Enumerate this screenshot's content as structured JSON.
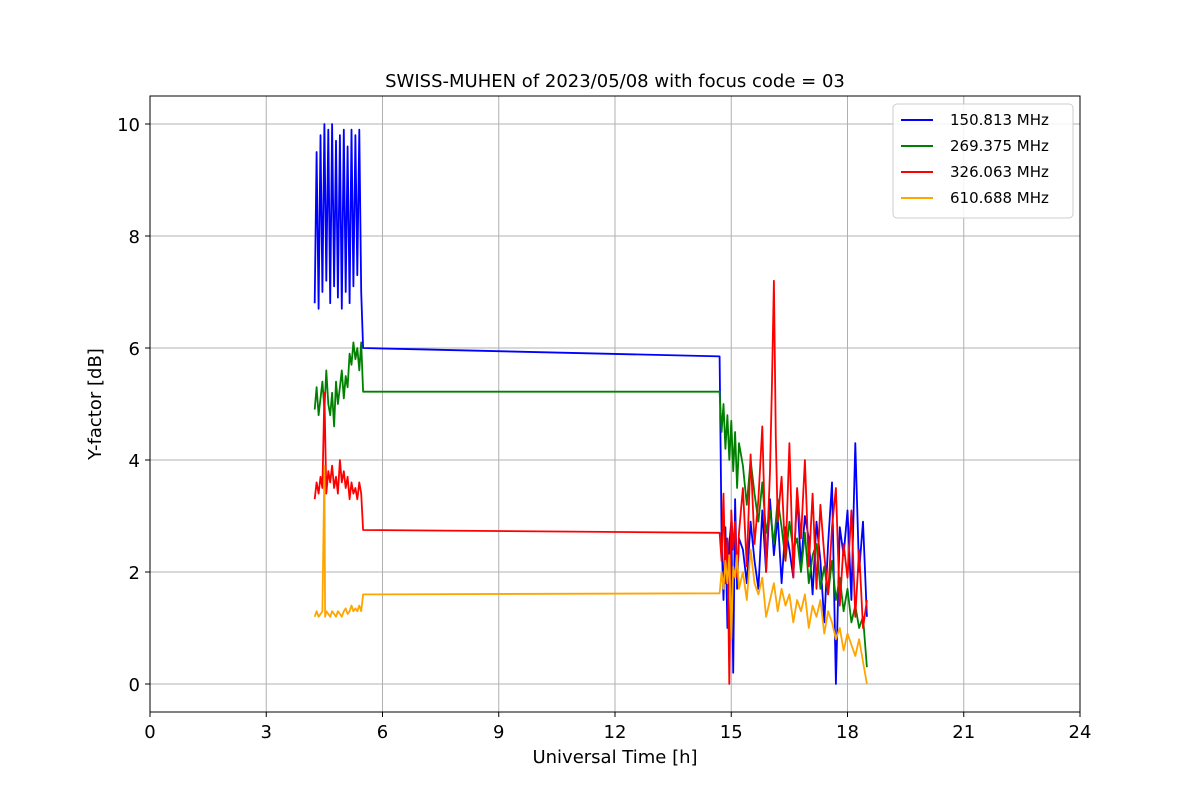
{
  "chart_data": {
    "type": "line",
    "title": "SWISS-MUHEN of 2023/05/08 with focus code = 03",
    "xlabel": "Universal Time [h]",
    "ylabel": "Y-factor [dB]",
    "xlim": [
      0,
      24
    ],
    "ylim": [
      -0.5,
      10.5
    ],
    "xticks": [
      0,
      3,
      6,
      9,
      12,
      15,
      18,
      21,
      24
    ],
    "yticks": [
      0,
      2,
      4,
      6,
      8,
      10
    ],
    "grid": true,
    "legend_position": "top-right",
    "series": [
      {
        "name": "150.813 MHz",
        "color": "#0000ff",
        "x": [
          4.25,
          4.3,
          4.35,
          4.4,
          4.45,
          4.5,
          4.55,
          4.6,
          4.65,
          4.7,
          4.75,
          4.8,
          4.85,
          4.9,
          4.95,
          5.0,
          5.05,
          5.1,
          5.15,
          5.2,
          5.25,
          5.3,
          5.35,
          5.4,
          5.45,
          5.5,
          14.7,
          14.75,
          14.8,
          14.85,
          14.9,
          14.95,
          15.0,
          15.05,
          15.1,
          15.15,
          15.2,
          15.3,
          15.4,
          15.5,
          15.6,
          15.7,
          15.8,
          15.9,
          16.0,
          16.1,
          16.2,
          16.3,
          16.4,
          16.5,
          16.6,
          16.7,
          16.8,
          16.9,
          17.0,
          17.1,
          17.2,
          17.3,
          17.4,
          17.5,
          17.6,
          17.7,
          17.8,
          17.9,
          18.0,
          18.1,
          18.2,
          18.3,
          18.4,
          18.5
        ],
        "y": [
          6.8,
          9.5,
          6.7,
          9.8,
          7.0,
          10.0,
          7.2,
          9.9,
          6.8,
          10.0,
          7.1,
          9.7,
          6.9,
          9.8,
          6.7,
          9.9,
          7.0,
          9.6,
          6.8,
          9.9,
          7.1,
          9.8,
          7.3,
          9.9,
          7.0,
          6.0,
          5.85,
          2.6,
          1.5,
          2.8,
          1.0,
          2.5,
          2.9,
          0.2,
          3.3,
          1.7,
          2.6,
          2.4,
          1.8,
          2.9,
          2.2,
          1.7,
          3.1,
          2.0,
          3.3,
          2.3,
          3.0,
          1.8,
          2.8,
          2.4,
          1.9,
          3.4,
          2.1,
          3.0,
          2.6,
          1.6,
          2.9,
          2.2,
          1.1,
          2.5,
          3.6,
          0.0,
          2.8,
          2.3,
          3.1,
          1.5,
          4.3,
          2.0,
          2.9,
          1.2
        ]
      },
      {
        "name": "269.375 MHz",
        "color": "#008000",
        "x": [
          4.25,
          4.3,
          4.35,
          4.4,
          4.45,
          4.5,
          4.55,
          4.6,
          4.65,
          4.7,
          4.75,
          4.8,
          4.85,
          4.9,
          4.95,
          5.0,
          5.05,
          5.1,
          5.15,
          5.2,
          5.25,
          5.3,
          5.35,
          5.4,
          5.45,
          5.5,
          14.7,
          14.75,
          14.8,
          14.85,
          14.9,
          14.95,
          15.0,
          15.05,
          15.1,
          15.15,
          15.2,
          15.3,
          15.4,
          15.5,
          15.6,
          15.7,
          15.8,
          15.9,
          16.0,
          16.1,
          16.2,
          16.3,
          16.4,
          16.5,
          16.6,
          16.7,
          16.8,
          16.9,
          17.0,
          17.1,
          17.2,
          17.3,
          17.4,
          17.5,
          17.6,
          17.7,
          17.8,
          17.9,
          18.0,
          18.1,
          18.2,
          18.3,
          18.4,
          18.5
        ],
        "y": [
          4.9,
          5.3,
          4.8,
          5.1,
          5.4,
          4.9,
          5.6,
          5.0,
          4.8,
          5.2,
          4.6,
          5.4,
          5.0,
          5.3,
          5.6,
          5.1,
          5.5,
          5.3,
          5.9,
          5.7,
          6.1,
          5.8,
          6.0,
          5.6,
          6.1,
          5.22,
          5.22,
          4.5,
          5.0,
          4.2,
          4.8,
          4.0,
          4.7,
          3.8,
          4.5,
          3.5,
          4.3,
          3.9,
          3.2,
          4.0,
          3.4,
          2.9,
          3.6,
          2.7,
          3.1,
          2.5,
          3.3,
          2.8,
          2.2,
          2.9,
          2.4,
          2.6,
          2.0,
          2.7,
          1.8,
          2.3,
          2.5,
          1.7,
          2.1,
          1.6,
          2.2,
          1.5,
          1.9,
          1.3,
          1.7,
          1.1,
          1.4,
          1.0,
          1.2,
          0.3
        ]
      },
      {
        "name": "326.063 MHz",
        "color": "#ff0000",
        "x": [
          4.25,
          4.3,
          4.35,
          4.4,
          4.45,
          4.5,
          4.55,
          4.6,
          4.65,
          4.7,
          4.75,
          4.8,
          4.85,
          4.9,
          4.95,
          5.0,
          5.05,
          5.1,
          5.15,
          5.2,
          5.25,
          5.3,
          5.35,
          5.4,
          5.45,
          5.5,
          14.7,
          14.75,
          14.8,
          14.85,
          14.9,
          14.95,
          15.0,
          15.05,
          15.1,
          15.15,
          15.2,
          15.3,
          15.4,
          15.5,
          15.6,
          15.7,
          15.8,
          15.9,
          16.0,
          16.05,
          16.1,
          16.15,
          16.2,
          16.3,
          16.4,
          16.5,
          16.6,
          16.7,
          16.8,
          16.9,
          17.0,
          17.1,
          17.2,
          17.3,
          17.4,
          17.5,
          17.6,
          17.7,
          17.8,
          17.9,
          18.0,
          18.1,
          18.2,
          18.3,
          18.4,
          18.5
        ],
        "y": [
          3.3,
          3.6,
          3.4,
          3.7,
          3.5,
          5.2,
          3.4,
          3.8,
          3.6,
          3.9,
          3.5,
          3.7,
          3.4,
          4.0,
          3.6,
          3.8,
          3.5,
          3.7,
          3.3,
          3.6,
          3.4,
          3.5,
          3.3,
          3.6,
          3.4,
          2.75,
          2.7,
          2.2,
          3.4,
          1.8,
          2.6,
          0.0,
          3.1,
          2.4,
          2.9,
          1.9,
          2.7,
          3.5,
          2.1,
          4.1,
          2.5,
          3.3,
          4.6,
          2.0,
          3.8,
          5.3,
          7.2,
          4.4,
          2.9,
          3.7,
          2.2,
          4.3,
          1.9,
          3.5,
          2.6,
          4.0,
          2.1,
          3.4,
          1.7,
          3.2,
          2.3,
          1.6,
          2.8,
          3.5,
          1.4,
          2.5,
          1.9,
          3.1,
          1.2,
          2.4,
          1.0,
          1.5
        ]
      },
      {
        "name": "610.688 MHz",
        "color": "#ffa500",
        "x": [
          4.25,
          4.3,
          4.35,
          4.4,
          4.45,
          4.5,
          4.52,
          4.55,
          4.6,
          4.65,
          4.7,
          4.75,
          4.8,
          4.85,
          4.9,
          4.95,
          5.0,
          5.05,
          5.1,
          5.15,
          5.2,
          5.25,
          5.3,
          5.35,
          5.4,
          5.45,
          5.5,
          14.7,
          14.75,
          14.8,
          14.85,
          14.9,
          14.95,
          15.0,
          15.05,
          15.1,
          15.15,
          15.2,
          15.3,
          15.4,
          15.5,
          15.6,
          15.7,
          15.8,
          15.9,
          16.0,
          16.1,
          16.2,
          16.3,
          16.4,
          16.5,
          16.6,
          16.7,
          16.8,
          16.9,
          17.0,
          17.1,
          17.2,
          17.3,
          17.4,
          17.5,
          17.6,
          17.7,
          17.8,
          17.9,
          18.0,
          18.1,
          18.2,
          18.3,
          18.4,
          18.5
        ],
        "y": [
          1.2,
          1.3,
          1.2,
          1.25,
          1.3,
          3.9,
          1.2,
          1.3,
          1.25,
          1.2,
          1.3,
          1.25,
          1.2,
          1.3,
          1.25,
          1.2,
          1.3,
          1.35,
          1.25,
          1.3,
          1.4,
          1.3,
          1.35,
          1.3,
          1.4,
          1.3,
          1.6,
          1.62,
          2.0,
          1.7,
          2.2,
          1.8,
          2.3,
          0.8,
          2.1,
          1.9,
          2.3,
          1.7,
          2.0,
          1.5,
          2.4,
          1.8,
          1.6,
          1.9,
          1.2,
          1.5,
          1.8,
          1.3,
          1.7,
          1.4,
          1.6,
          1.1,
          1.5,
          1.3,
          1.6,
          1.0,
          1.4,
          1.2,
          1.5,
          0.9,
          1.3,
          1.1,
          0.8,
          1.0,
          0.6,
          0.9,
          0.7,
          0.5,
          0.8,
          0.4,
          0.0
        ]
      }
    ]
  }
}
